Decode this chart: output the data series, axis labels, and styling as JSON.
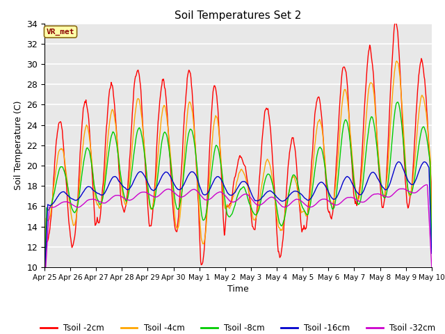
{
  "title": "Soil Temperatures Set 2",
  "xlabel": "Time",
  "ylabel": "Soil Temperature (C)",
  "ylim": [
    10,
    34
  ],
  "yticks": [
    10,
    12,
    14,
    16,
    18,
    20,
    22,
    24,
    26,
    28,
    30,
    32,
    34
  ],
  "annotation": "VR_met",
  "annotation_color": "#8B0000",
  "annotation_bg": "#FFFFAA",
  "fig_bg": "#FFFFFF",
  "plot_bg": "#E8E8E8",
  "colors": {
    "Tsoil -2cm": "#FF0000",
    "Tsoil -4cm": "#FFA500",
    "Tsoil -8cm": "#00CC00",
    "Tsoil -16cm": "#0000CC",
    "Tsoil -32cm": "#CC00CC"
  },
  "xtick_labels": [
    "Apr 25",
    "Apr 26",
    "Apr 27",
    "Apr 28",
    "Apr 29",
    "Apr 30",
    "May 1",
    "May 2",
    "May 3",
    "May 4",
    "May 5",
    "May 6",
    "May 7",
    "May 8",
    "May 9",
    "May 10"
  ],
  "n_days": 15,
  "pts_per_day": 48,
  "grid_color": "#FFFFFF",
  "linewidth": 1.0,
  "highs2": [
    24.5,
    26.5,
    28.0,
    29.5,
    28.5,
    29.5,
    27.8,
    20.8,
    25.8,
    22.8,
    27.0,
    29.9,
    31.5,
    34.0,
    30.5
  ],
  "lows2": [
    12.2,
    12.0,
    14.5,
    15.5,
    14.0,
    13.5,
    10.2,
    16.0,
    13.5,
    11.0,
    14.0,
    15.0,
    16.0,
    15.8,
    16.0
  ],
  "highs4": [
    22.0,
    24.0,
    25.5,
    26.5,
    26.0,
    26.5,
    25.0,
    19.5,
    20.5,
    19.0,
    24.5,
    27.5,
    28.5,
    30.5,
    27.0
  ],
  "lows4": [
    14.5,
    14.0,
    15.5,
    16.0,
    15.5,
    13.5,
    12.0,
    16.0,
    14.5,
    13.5,
    15.0,
    16.0,
    16.5,
    17.0,
    17.0
  ],
  "highs8": [
    20.0,
    21.8,
    23.5,
    23.8,
    23.5,
    23.8,
    22.0,
    18.0,
    19.2,
    19.2,
    22.0,
    24.8,
    25.0,
    26.5,
    24.0
  ],
  "lows8": [
    15.5,
    15.0,
    16.0,
    16.5,
    15.5,
    15.5,
    14.5,
    15.0,
    15.0,
    14.0,
    15.0,
    15.5,
    16.0,
    16.5,
    17.0
  ],
  "highs16": [
    17.5,
    18.0,
    19.0,
    19.5,
    19.5,
    19.5,
    19.0,
    18.5,
    17.5,
    17.5,
    18.5,
    19.0,
    19.5,
    20.5,
    20.5
  ],
  "lows16": [
    16.0,
    16.5,
    17.0,
    17.5,
    17.5,
    17.5,
    17.0,
    17.0,
    16.5,
    16.5,
    16.5,
    16.5,
    17.0,
    17.5,
    18.0
  ],
  "highs32": [
    16.5,
    16.8,
    17.2,
    17.5,
    17.8,
    17.8,
    17.5,
    17.3,
    17.0,
    16.8,
    16.8,
    17.0,
    17.3,
    17.8,
    18.2
  ],
  "lows32": [
    15.8,
    15.8,
    16.2,
    16.5,
    16.8,
    16.8,
    16.5,
    16.3,
    16.0,
    15.8,
    15.8,
    16.0,
    16.3,
    16.8,
    17.2
  ]
}
